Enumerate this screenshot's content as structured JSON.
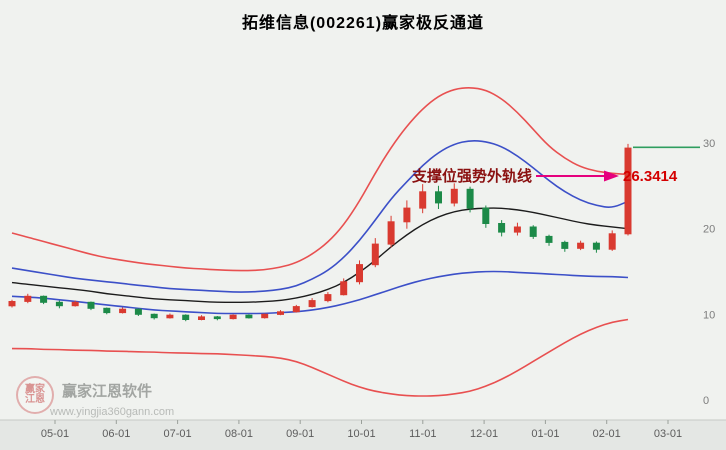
{
  "header": {
    "title": "拓维信息(002261)赢家极反通道"
  },
  "annotation": {
    "label": "支撑位强势外轨线",
    "value": "26.3414",
    "price": 26.3414,
    "arrow_color": "#e5007d"
  },
  "watermark": {
    "brand": "赢家江恩软件",
    "url": "www.yingjia360gann.com",
    "logo_line1": "赢家",
    "logo_line2": "江恩"
  },
  "chart_data": {
    "type": "candlestick",
    "title": "拓维信息(002261)赢家极反通道",
    "x_labels": [
      "05-01",
      "06-01",
      "07-01",
      "08-01",
      "09-01",
      "10-01",
      "11-01",
      "12-01",
      "01-01",
      "02-01",
      "03-01"
    ],
    "y_ticks": [
      30,
      20,
      10,
      0
    ],
    "ylim": [
      0,
      42
    ],
    "grid": false,
    "legend": false,
    "up_color": "#d93a30",
    "down_color": "#1c8a48",
    "candles": {
      "format": [
        "open",
        "close",
        "low",
        "high"
      ],
      "ohlc": [
        [
          11.0,
          11.5,
          10.8,
          11.7
        ],
        [
          11.5,
          12.1,
          11.3,
          12.4
        ],
        [
          12.1,
          11.4,
          11.2,
          12.2
        ],
        [
          11.4,
          11.0,
          10.7,
          11.6
        ],
        [
          11.0,
          11.4,
          10.9,
          11.6
        ],
        [
          11.4,
          10.7,
          10.5,
          11.5
        ],
        [
          10.7,
          10.2,
          10.0,
          10.8
        ],
        [
          10.2,
          10.6,
          10.1,
          10.8
        ],
        [
          10.6,
          10.0,
          9.8,
          10.7
        ],
        [
          10.0,
          9.6,
          9.4,
          10.1
        ],
        [
          9.6,
          9.9,
          9.5,
          10.1
        ],
        [
          9.9,
          9.4,
          9.2,
          10.0
        ],
        [
          9.4,
          9.7,
          9.3,
          9.9
        ],
        [
          9.7,
          9.5,
          9.3,
          9.8
        ],
        [
          9.5,
          9.9,
          9.4,
          10.0
        ],
        [
          9.9,
          9.6,
          9.5,
          10.0
        ],
        [
          9.6,
          10.0,
          9.5,
          10.1
        ],
        [
          10.0,
          10.3,
          9.9,
          10.5
        ],
        [
          10.3,
          10.9,
          10.2,
          11.1
        ],
        [
          10.9,
          11.6,
          10.8,
          11.9
        ],
        [
          11.6,
          12.3,
          11.4,
          12.6
        ],
        [
          12.3,
          13.8,
          12.2,
          14.2
        ],
        [
          13.8,
          15.8,
          13.5,
          16.3
        ],
        [
          15.8,
          18.2,
          15.5,
          18.9
        ],
        [
          18.2,
          20.8,
          17.8,
          21.5
        ],
        [
          20.8,
          22.4,
          20.0,
          23.3
        ],
        [
          22.4,
          24.3,
          21.8,
          25.2
        ],
        [
          24.3,
          23.0,
          22.3,
          25.0
        ],
        [
          23.0,
          24.6,
          22.6,
          25.3
        ],
        [
          24.6,
          22.4,
          21.9,
          24.9
        ],
        [
          22.4,
          20.6,
          20.1,
          22.7
        ],
        [
          20.6,
          19.6,
          19.1,
          21.0
        ],
        [
          19.6,
          20.2,
          19.2,
          20.7
        ],
        [
          20.2,
          19.1,
          18.8,
          20.4
        ],
        [
          19.1,
          18.4,
          18.0,
          19.3
        ],
        [
          18.4,
          17.7,
          17.3,
          18.6
        ],
        [
          17.7,
          18.3,
          17.5,
          18.6
        ],
        [
          18.3,
          17.6,
          17.2,
          18.5
        ],
        [
          17.6,
          19.4,
          17.4,
          19.8
        ],
        [
          19.4,
          29.4,
          19.2,
          29.9
        ]
      ]
    },
    "series": [
      {
        "name": "outer-rail-upper",
        "color": "#e85050",
        "width": 1.6,
        "values": [
          19.5,
          19.0,
          18.5,
          18.0,
          17.5,
          17.0,
          16.6,
          16.3,
          16.0,
          15.8,
          15.6,
          15.4,
          15.3,
          15.2,
          15.1,
          15.1,
          15.2,
          15.5,
          16.0,
          17.0,
          18.4,
          20.4,
          23.2,
          26.5,
          29.5,
          32.0,
          34.0,
          35.5,
          36.3,
          36.5,
          36.2,
          35.2,
          33.6,
          31.6,
          29.6,
          28.2,
          27.2,
          26.7,
          26.45,
          26.34
        ]
      },
      {
        "name": "inner-rail-upper",
        "color": "#3c50c8",
        "width": 1.6,
        "values": [
          15.4,
          15.1,
          14.8,
          14.5,
          14.2,
          14.0,
          13.8,
          13.6,
          13.4,
          13.2,
          13.0,
          12.9,
          12.8,
          12.7,
          12.6,
          12.6,
          12.7,
          12.9,
          13.3,
          14.1,
          15.1,
          16.6,
          18.6,
          21.0,
          23.5,
          25.5,
          27.4,
          28.9,
          29.9,
          30.3,
          30.2,
          29.6,
          28.5,
          27.1,
          25.6,
          24.3,
          23.3,
          22.7,
          22.4,
          23.2
        ]
      },
      {
        "name": "mid-rail",
        "color": "#1c1c1c",
        "width": 1.4,
        "values": [
          13.7,
          13.5,
          13.3,
          13.1,
          12.9,
          12.7,
          12.4,
          12.2,
          12.0,
          11.8,
          11.7,
          11.6,
          11.5,
          11.4,
          11.4,
          11.4,
          11.5,
          11.6,
          11.9,
          12.3,
          12.9,
          13.7,
          14.9,
          16.3,
          17.9,
          19.3,
          20.5,
          21.4,
          22.0,
          22.3,
          22.4,
          22.4,
          22.2,
          21.9,
          21.5,
          21.1,
          20.7,
          20.4,
          20.2,
          20.0
        ]
      },
      {
        "name": "inner-rail-lower",
        "color": "#3c50c8",
        "width": 1.6,
        "values": [
          12.1,
          12.0,
          11.9,
          11.7,
          11.5,
          11.3,
          11.1,
          10.9,
          10.7,
          10.5,
          10.4,
          10.3,
          10.2,
          10.1,
          10.1,
          10.1,
          10.1,
          10.2,
          10.3,
          10.5,
          10.8,
          11.2,
          11.7,
          12.3,
          12.9,
          13.5,
          14.0,
          14.4,
          14.7,
          14.9,
          15.0,
          15.0,
          14.9,
          14.8,
          14.7,
          14.6,
          14.5,
          14.4,
          14.4,
          14.3
        ]
      },
      {
        "name": "outer-rail-lower",
        "color": "#e85050",
        "width": 1.6,
        "values": [
          6.0,
          6.0,
          5.9,
          5.9,
          5.8,
          5.8,
          5.7,
          5.7,
          5.6,
          5.6,
          5.5,
          5.5,
          5.4,
          5.4,
          5.3,
          5.2,
          5.1,
          4.9,
          4.5,
          3.8,
          3.0,
          2.2,
          1.5,
          1.0,
          0.7,
          0.5,
          0.45,
          0.5,
          0.7,
          1.0,
          1.6,
          2.4,
          3.4,
          4.5,
          5.6,
          6.7,
          7.7,
          8.5,
          9.1,
          9.4
        ]
      }
    ],
    "last_price_line": {
      "price": 29.5,
      "color": "#2f9e5f"
    }
  }
}
